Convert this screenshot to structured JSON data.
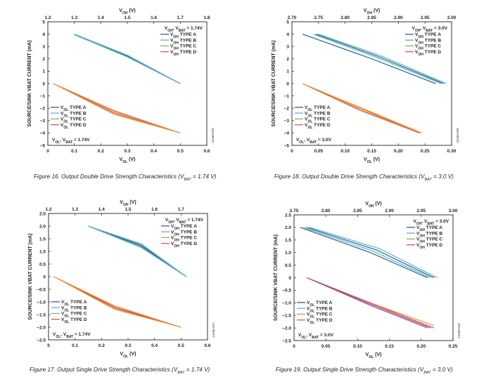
{
  "chart_data": [
    {
      "type": "line",
      "figure_id": "fig16",
      "caption": "Figure 16. Output Double Drive Strength Characteristics (VBAT = 1.74 V)",
      "top_axis_title": "VOH (V)",
      "bottom_axis_title": "VOL (V)",
      "ylabel": "SOURCE/SINK VBAT CURRENT (mA)",
      "xlim_bottom": [
        0,
        0.6
      ],
      "xticks_bottom": [
        "0",
        "0.1",
        "0.2",
        "0.3",
        "0.4",
        "0.5",
        "0.6"
      ],
      "xlim_top": [
        1.2,
        1.8
      ],
      "xticks_top": [
        "1.2",
        "1.3",
        "1.4",
        "1.5",
        "1.6",
        "1.7",
        "1.8"
      ],
      "ylim": [
        -5,
        5
      ],
      "yticks": [
        "5",
        "4",
        "3",
        "2",
        "1",
        "0",
        "−1",
        "−2",
        "−3",
        "−4",
        "−5"
      ],
      "voh_condition": "VOH, VBAT = 1.74V",
      "vol_condition": "VOL, VBAT = 1.74V",
      "voh_legend": [
        "VOH TYPE A",
        "VOH TYPE B",
        "VOH TYPE C",
        "VOH TYPE D"
      ],
      "vol_legend": [
        "VOL TYPE A",
        "VOL TYPE B",
        "VOL TYPE C",
        "VOL TYPE D"
      ],
      "voh_series": [
        {
          "name": "VOH TYPE A",
          "x": [
            1.3,
            1.5,
            1.7
          ],
          "y": [
            4.0,
            2.2,
            0.0
          ]
        },
        {
          "name": "VOH TYPE B",
          "x": [
            1.3,
            1.5,
            1.7
          ],
          "y": [
            3.95,
            2.15,
            0.0
          ]
        },
        {
          "name": "VOH TYPE C",
          "x": [
            1.3,
            1.5,
            1.7
          ],
          "y": [
            4.0,
            2.25,
            0.0
          ]
        },
        {
          "name": "VOH TYPE D",
          "x": [
            1.3,
            1.5,
            1.7
          ],
          "y": [
            4.0,
            2.3,
            0.0
          ]
        }
      ],
      "vol_series": [
        {
          "name": "VOL TYPE A",
          "x": [
            0.02,
            0.25,
            0.5
          ],
          "y": [
            0.0,
            -2.2,
            -4.0
          ]
        },
        {
          "name": "VOL TYPE B",
          "x": [
            0.02,
            0.25,
            0.5
          ],
          "y": [
            0.0,
            -2.3,
            -4.0
          ]
        },
        {
          "name": "VOL TYPE C",
          "x": [
            0.02,
            0.25,
            0.5
          ],
          "y": [
            0.0,
            -2.4,
            -4.0
          ]
        },
        {
          "name": "VOL TYPE D",
          "x": [
            0.02,
            0.25,
            0.5
          ],
          "y": [
            0.0,
            -2.5,
            -4.0
          ]
        }
      ],
      "code": "14166-016"
    },
    {
      "type": "line",
      "figure_id": "fig18",
      "caption": "Figure 18. Output Double Drive Strength Characteristics (VBAT = 3.0 V)",
      "top_axis_title": "VOH (V)",
      "bottom_axis_title": "VOL (V)",
      "ylabel": "SOURCE/SINK VBAT CURRENT (mA)",
      "xlim_bottom": [
        0,
        0.3
      ],
      "xticks_bottom": [
        "0",
        "0.05",
        "0.10",
        "0.15",
        "0.20",
        "0.25",
        "0.30"
      ],
      "xlim_top": [
        2.7,
        3.0
      ],
      "xticks_top": [
        "2.70",
        "2.75",
        "2.80",
        "2.85",
        "2.90",
        "2.95",
        "3.00"
      ],
      "ylim": [
        -5,
        5
      ],
      "yticks": [
        "5",
        "4",
        "3",
        "2",
        "1",
        "0",
        "−1",
        "−2",
        "−3",
        "−4",
        "−5"
      ],
      "voh_condition": "VOH, VBAT = 3.0V",
      "vol_condition": "VOL, VBAT = 3.0V",
      "voh_legend": [
        "VOH TYPE A",
        "VOH TYPE B",
        "VOH TYPE C",
        "VOH TYPE D"
      ],
      "vol_legend": [
        "VOL TYPE A",
        "VOL TYPE B",
        "VOL TYPE C",
        "VOL TYPE D"
      ],
      "voh_series": [
        {
          "name": "VOH TYPE A",
          "x": [
            2.72,
            2.85,
            2.97
          ],
          "y": [
            4.0,
            2.0,
            0.0
          ]
        },
        {
          "name": "VOH TYPE B",
          "x": [
            2.74,
            2.86,
            2.98
          ],
          "y": [
            4.0,
            2.1,
            0.0
          ]
        },
        {
          "name": "VOH TYPE C",
          "x": [
            2.745,
            2.865,
            2.985
          ],
          "y": [
            4.0,
            2.15,
            0.0
          ]
        },
        {
          "name": "VOH TYPE D",
          "x": [
            2.75,
            2.87,
            2.99
          ],
          "y": [
            4.0,
            2.2,
            0.0
          ]
        }
      ],
      "vol_series": [
        {
          "name": "VOL TYPE A",
          "x": [
            0.02,
            0.13,
            0.24
          ],
          "y": [
            0.0,
            -2.0,
            -4.0
          ]
        },
        {
          "name": "VOL TYPE B",
          "x": [
            0.02,
            0.13,
            0.24
          ],
          "y": [
            0.0,
            -2.1,
            -4.0
          ]
        },
        {
          "name": "VOL TYPE C",
          "x": [
            0.02,
            0.13,
            0.24
          ],
          "y": [
            0.0,
            -2.2,
            -4.0
          ]
        },
        {
          "name": "VOL TYPE D",
          "x": [
            0.02,
            0.135,
            0.245
          ],
          "y": [
            0.0,
            -2.05,
            -4.0
          ]
        }
      ],
      "code": "14166-018"
    },
    {
      "type": "line",
      "figure_id": "fig17",
      "caption": "Figure 17. Output Single Drive Strength Characteristics (VBAT = 1.74 V)",
      "top_axis_title": "VOH (V)",
      "bottom_axis_title": "VOL (V)",
      "ylabel": "SOURCE/SINK VBAT CURRENT (mA)",
      "xlim_bottom": [
        0,
        0.6
      ],
      "xticks_bottom": [
        "0",
        "0.1",
        "0.2",
        "0.3",
        "0.4",
        "0.5",
        "0.6"
      ],
      "xlim_top": [
        1.2,
        1.8
      ],
      "xticks_top": [
        "1.2",
        "1.3",
        "1.4",
        "1.5",
        "1.6",
        "1.7"
      ],
      "ylim": [
        -2.5,
        2.5
      ],
      "yticks": [
        "2.5",
        "2.0",
        "1.5",
        "1.0",
        "0.5",
        "0",
        "−0.5",
        "−1.0",
        "−1.5",
        "−2.0",
        "−2.5"
      ],
      "voh_condition": "VOH, VBAT = 1.74V",
      "vol_condition": "VOL, VBAT = 1.74V",
      "voh_legend": [
        "VOH TYPE A",
        "VOH TYPE B",
        "VOH TYPE C",
        "VOH TYPE D"
      ],
      "vol_legend": [
        "VOL TYPE A",
        "VOL TYPE B",
        "VOL TYPE C",
        "VOL TYPE D"
      ],
      "voh_series": [
        {
          "name": "VOH TYPE A",
          "x": [
            1.35,
            1.55,
            1.72
          ],
          "y": [
            2.0,
            1.2,
            0.0
          ]
        },
        {
          "name": "VOH TYPE B",
          "x": [
            1.35,
            1.55,
            1.72
          ],
          "y": [
            2.0,
            1.15,
            0.0
          ]
        },
        {
          "name": "VOH TYPE C",
          "x": [
            1.35,
            1.55,
            1.72
          ],
          "y": [
            2.0,
            1.25,
            0.0
          ]
        },
        {
          "name": "VOH TYPE D",
          "x": [
            1.35,
            1.55,
            1.72
          ],
          "y": [
            2.0,
            1.3,
            0.0
          ]
        }
      ],
      "vol_series": [
        {
          "name": "VOL TYPE A",
          "x": [
            0.02,
            0.25,
            0.5
          ],
          "y": [
            0.0,
            -1.2,
            -2.0
          ]
        },
        {
          "name": "VOL TYPE B",
          "x": [
            0.02,
            0.25,
            0.5
          ],
          "y": [
            0.0,
            -1.15,
            -2.0
          ]
        },
        {
          "name": "VOL TYPE C",
          "x": [
            0.02,
            0.25,
            0.5
          ],
          "y": [
            0.0,
            -1.25,
            -2.0
          ]
        },
        {
          "name": "VOL TYPE D",
          "x": [
            0.02,
            0.25,
            0.5
          ],
          "y": [
            0.0,
            -1.3,
            -2.0
          ]
        }
      ],
      "code": "14166-017"
    },
    {
      "type": "line",
      "figure_id": "fig19",
      "caption": "Figure 19. Output Single Drive Strength Characteristics (VBAT = 3.0 V)",
      "top_axis_title": "VOH (V)",
      "bottom_axis_title": "VOL (V)",
      "ylabel": "SOURCE/SINK VBAT CURRENT (mA)",
      "xlim_bottom": [
        0,
        0.25
      ],
      "xticks_bottom": [
        "0",
        "0.05",
        "0.10",
        "0.15",
        "0.20",
        "0.25"
      ],
      "xlim_top": [
        2.75,
        3.0
      ],
      "xticks_top": [
        "2.75",
        "2.80",
        "2.85",
        "2.90",
        "2.95",
        "3.00"
      ],
      "ylim": [
        -2.5,
        2.5
      ],
      "yticks": [
        "2.5",
        "2.0",
        "1.5",
        "1.0",
        "0.5",
        "0",
        "−0.5",
        "−1.0",
        "−1.5",
        "−2.0",
        "−2.5"
      ],
      "voh_condition": "VOH, VBAT = 3.0V",
      "vol_condition": "VOL, VBAT = 3.0V",
      "voh_legend": [
        "VOH TYPE A",
        "VOH TYPE B",
        "VOH TYPE C",
        "VOH TYPE D"
      ],
      "vol_legend": [
        "VOL TYPE A",
        "VOL TYPE B",
        "VOL TYPE C",
        "VOL TYPE D"
      ],
      "voh_series": [
        {
          "name": "VOH TYPE A",
          "x": [
            2.76,
            2.87,
            2.96
          ],
          "y": [
            2.0,
            1.0,
            0.0
          ]
        },
        {
          "name": "VOH TYPE B",
          "x": [
            2.765,
            2.875,
            2.965
          ],
          "y": [
            2.0,
            1.05,
            0.0
          ]
        },
        {
          "name": "VOH TYPE C",
          "x": [
            2.77,
            2.88,
            2.97
          ],
          "y": [
            2.0,
            1.1,
            0.0
          ]
        },
        {
          "name": "VOH TYPE D",
          "x": [
            2.775,
            2.885,
            2.975
          ],
          "y": [
            2.0,
            1.15,
            0.0
          ]
        }
      ],
      "vol_series": [
        {
          "name": "VOL TYPE A",
          "x": [
            0.02,
            0.12,
            0.21
          ],
          "y": [
            0.0,
            -1.1,
            -2.0
          ]
        },
        {
          "name": "VOL TYPE B",
          "x": [
            0.02,
            0.12,
            0.22
          ],
          "y": [
            0.0,
            -1.0,
            -1.9
          ]
        },
        {
          "name": "VOL TYPE C",
          "x": [
            0.02,
            0.12,
            0.22
          ],
          "y": [
            0.0,
            -1.0,
            -2.0
          ]
        },
        {
          "name": "VOL TYPE D",
          "x": [
            0.02,
            0.12,
            0.215
          ],
          "y": [
            0.0,
            -1.05,
            -2.0
          ]
        }
      ],
      "code": "14166-019"
    }
  ],
  "colors": {
    "type_a": "#3f3f93",
    "type_b": "#5b9fd6",
    "type_c": "#8fa85a",
    "type_d": "#e0483a",
    "voh_curve": "#2f6f8f",
    "voh_curve_alt": "#6cb7d0",
    "vol_curve": "#d2553c",
    "vol_curve_alt": "#e5a64a",
    "vol_curve_purple": "#9a4f9a",
    "axis": "#231f20"
  }
}
